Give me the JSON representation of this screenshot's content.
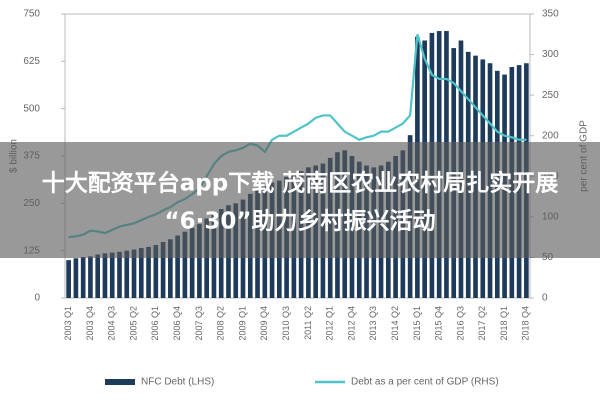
{
  "chart_data": {
    "type": "bar",
    "y_label": "$ billion",
    "y2_label": "per cent of GDP",
    "categories": [
      "2003 Q1",
      null,
      null,
      "2003 Q4",
      null,
      null,
      "2004 Q3",
      null,
      null,
      "2005 Q2",
      null,
      null,
      "2006 Q1",
      null,
      null,
      "2006 Q4",
      null,
      null,
      "2007 Q3",
      null,
      null,
      "2008 Q2",
      null,
      null,
      "2009 Q1",
      null,
      null,
      "2009 Q4",
      null,
      null,
      "2010 Q3",
      null,
      null,
      "2011 Q2",
      null,
      null,
      "2012 Q1",
      null,
      null,
      "2012 Q4",
      null,
      null,
      "2013 Q3",
      null,
      null,
      "2014 Q2",
      null,
      null,
      "2015 Q1",
      null,
      null,
      "2015 Q4",
      null,
      null,
      "2016 Q3",
      null,
      null,
      "2017 Q2",
      null,
      null,
      "2018 Q1",
      null,
      null,
      "2018 Q4"
    ],
    "series": [
      {
        "name": "NFC Debt (LHS)",
        "type": "bar",
        "color": "#1f3b5c",
        "values": [
          100,
          105,
          108,
          110,
          115,
          118,
          120,
          122,
          125,
          128,
          132,
          135,
          140,
          148,
          155,
          165,
          175,
          185,
          195,
          210,
          220,
          235,
          245,
          250,
          260,
          275,
          285,
          295,
          305,
          310,
          320,
          330,
          335,
          345,
          350,
          355,
          370,
          385,
          390,
          375,
          360,
          350,
          345,
          350,
          360,
          375,
          390,
          430,
          690,
          680,
          700,
          705,
          705,
          660,
          680,
          650,
          640,
          630,
          620,
          600,
          590,
          610,
          615,
          620
        ]
      },
      {
        "name": "Debt as a per cent of GDP (RHS)",
        "type": "line",
        "axis": "y2",
        "color": "#4fc3c8",
        "values": [
          75,
          76,
          78,
          83,
          82,
          80,
          84,
          88,
          90,
          92,
          96,
          100,
          103,
          108,
          112,
          118,
          122,
          128,
          135,
          150,
          165,
          175,
          180,
          182,
          185,
          190,
          188,
          180,
          195,
          200,
          200,
          205,
          210,
          215,
          222,
          225,
          225,
          215,
          205,
          200,
          195,
          198,
          200,
          205,
          205,
          210,
          215,
          225,
          325,
          295,
          275,
          270,
          270,
          265,
          255,
          245,
          235,
          225,
          215,
          205,
          200,
          198,
          195,
          195
        ]
      }
    ],
    "ylim": [
      0,
      750
    ],
    "yticks": [
      0,
      125,
      250,
      375,
      500,
      625,
      750
    ],
    "y2lim": [
      0,
      350
    ],
    "y2ticks": [
      0,
      50,
      100,
      150,
      200,
      250,
      300,
      350
    ],
    "grid": false,
    "legend": "bottom"
  },
  "banner": {
    "lines": [
      "十大配资平台app下载 茂南区农业农村局扎实开展",
      "“6·30”助力乡村振兴活动"
    ]
  }
}
